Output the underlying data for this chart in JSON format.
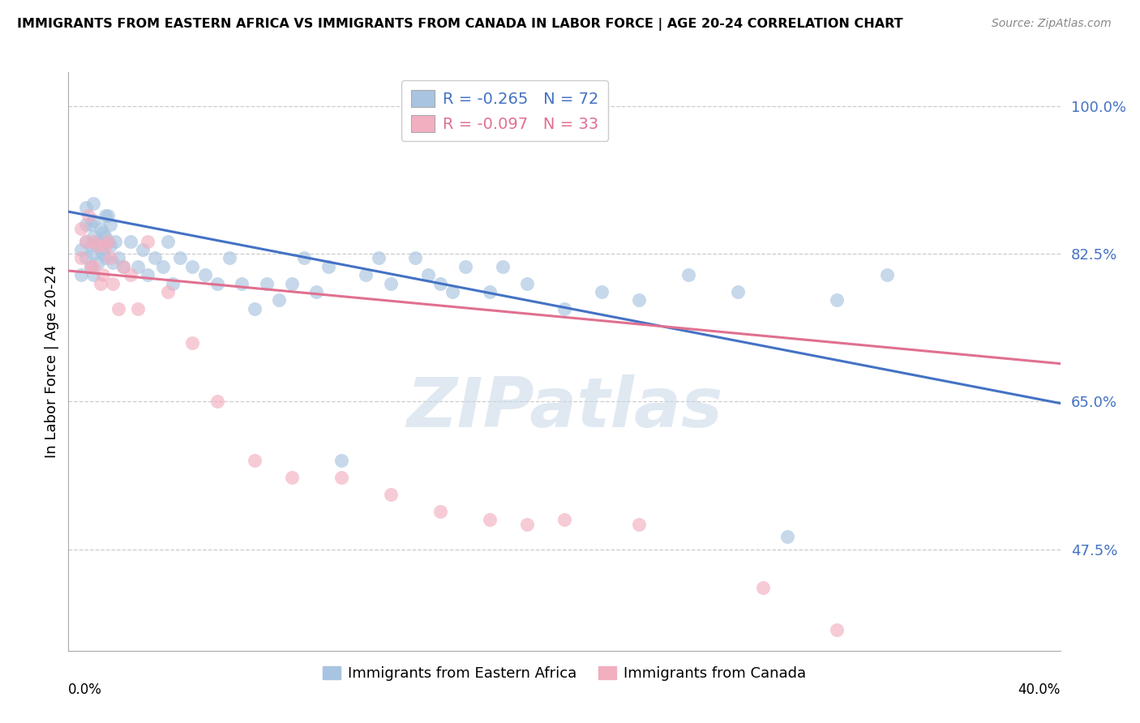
{
  "title": "IMMIGRANTS FROM EASTERN AFRICA VS IMMIGRANTS FROM CANADA IN LABOR FORCE | AGE 20-24 CORRELATION CHART",
  "source": "Source: ZipAtlas.com",
  "xlabel_bottom_left": "0.0%",
  "xlabel_bottom_right": "40.0%",
  "ylabel": "In Labor Force | Age 20-24",
  "right_yticks": [
    1.0,
    0.825,
    0.65,
    0.475
  ],
  "right_yticklabels": [
    "100.0%",
    "82.5%",
    "65.0%",
    "47.5%"
  ],
  "xlim": [
    0.0,
    0.4
  ],
  "ylim": [
    0.355,
    1.04
  ],
  "blue_R": -0.265,
  "blue_N": 72,
  "pink_R": -0.097,
  "pink_N": 33,
  "blue_color": "#a8c4e0",
  "pink_color": "#f2afc0",
  "blue_line_color": "#4472c4",
  "pink_line_color": "#e07090",
  "legend_label_blue": "Immigrants from Eastern Africa",
  "legend_label_pink": "Immigrants from Canada",
  "watermark": "ZIPatlas",
  "blue_scatter_x": [
    0.005,
    0.005,
    0.007,
    0.007,
    0.007,
    0.007,
    0.009,
    0.009,
    0.009,
    0.01,
    0.01,
    0.01,
    0.01,
    0.01,
    0.012,
    0.012,
    0.013,
    0.013,
    0.014,
    0.014,
    0.015,
    0.015,
    0.015,
    0.016,
    0.016,
    0.017,
    0.017,
    0.018,
    0.019,
    0.02,
    0.022,
    0.025,
    0.028,
    0.03,
    0.032,
    0.035,
    0.038,
    0.04,
    0.042,
    0.045,
    0.05,
    0.055,
    0.06,
    0.065,
    0.07,
    0.075,
    0.08,
    0.085,
    0.09,
    0.095,
    0.1,
    0.105,
    0.11,
    0.12,
    0.125,
    0.13,
    0.14,
    0.145,
    0.15,
    0.155,
    0.16,
    0.17,
    0.175,
    0.185,
    0.2,
    0.215,
    0.23,
    0.25,
    0.27,
    0.29,
    0.31,
    0.33
  ],
  "blue_scatter_y": [
    0.8,
    0.83,
    0.82,
    0.84,
    0.86,
    0.88,
    0.81,
    0.835,
    0.86,
    0.8,
    0.825,
    0.845,
    0.865,
    0.885,
    0.815,
    0.84,
    0.83,
    0.855,
    0.825,
    0.85,
    0.82,
    0.845,
    0.87,
    0.84,
    0.87,
    0.835,
    0.86,
    0.815,
    0.84,
    0.82,
    0.81,
    0.84,
    0.81,
    0.83,
    0.8,
    0.82,
    0.81,
    0.84,
    0.79,
    0.82,
    0.81,
    0.8,
    0.79,
    0.82,
    0.79,
    0.76,
    0.79,
    0.77,
    0.79,
    0.82,
    0.78,
    0.81,
    0.58,
    0.8,
    0.82,
    0.79,
    0.82,
    0.8,
    0.79,
    0.78,
    0.81,
    0.78,
    0.81,
    0.79,
    0.76,
    0.78,
    0.77,
    0.8,
    0.78,
    0.49,
    0.77,
    0.8
  ],
  "pink_scatter_x": [
    0.005,
    0.005,
    0.007,
    0.008,
    0.009,
    0.01,
    0.01,
    0.012,
    0.013,
    0.014,
    0.015,
    0.016,
    0.017,
    0.018,
    0.02,
    0.022,
    0.025,
    0.028,
    0.032,
    0.04,
    0.05,
    0.06,
    0.075,
    0.09,
    0.11,
    0.13,
    0.15,
    0.17,
    0.185,
    0.2,
    0.23,
    0.28,
    0.31
  ],
  "pink_scatter_y": [
    0.82,
    0.855,
    0.84,
    0.87,
    0.81,
    0.84,
    0.81,
    0.835,
    0.79,
    0.8,
    0.835,
    0.84,
    0.82,
    0.79,
    0.76,
    0.81,
    0.8,
    0.76,
    0.84,
    0.78,
    0.72,
    0.65,
    0.58,
    0.56,
    0.56,
    0.54,
    0.52,
    0.51,
    0.505,
    0.51,
    0.505,
    0.43,
    0.38
  ],
  "blue_trend_x0": 0.0,
  "blue_trend_y0": 0.875,
  "blue_trend_x1": 0.4,
  "blue_trend_y1": 0.648,
  "pink_trend_x0": 0.0,
  "pink_trend_y0": 0.805,
  "pink_trend_x1": 0.4,
  "pink_trend_y1": 0.695
}
